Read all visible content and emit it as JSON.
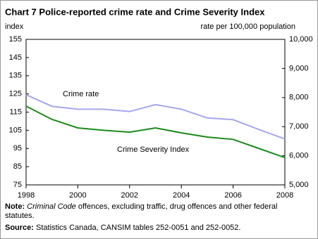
{
  "chart_data": {
    "type": "line",
    "title": "Chart  7 Police-reported crime rate and Crime Severity Index",
    "ylabel": "index",
    "y2label": "rate per 100,000 population",
    "x": [
      1998,
      1999,
      2000,
      2001,
      2002,
      2003,
      2004,
      2005,
      2006,
      2007,
      2008
    ],
    "xlim": [
      1998,
      2008
    ],
    "xticks": [
      1998,
      2000,
      2002,
      2004,
      2006,
      2008
    ],
    "ylim": [
      75,
      155
    ],
    "yticks": [
      75,
      85,
      95,
      105,
      115,
      125,
      135,
      145,
      155
    ],
    "y2lim": [
      5000,
      10000
    ],
    "y2ticks": [
      {
        "value": 5000,
        "label": "5,000"
      },
      {
        "value": 6000,
        "label": "6,000"
      },
      {
        "value": 7000,
        "label": "7,000"
      },
      {
        "value": 8000,
        "label": "8,000"
      },
      {
        "value": 9000,
        "label": "9,000"
      },
      {
        "value": 10000,
        "label": "10,000"
      }
    ],
    "series": [
      {
        "name": "Crime rate",
        "color": "#a6a6ee",
        "axis": "y2",
        "values": [
          8100,
          7700,
          7600,
          7600,
          7520,
          7760,
          7600,
          7300,
          7240,
          6900,
          6580
        ]
      },
      {
        "name": "Crime Severity Index",
        "color": "#1a8a1a",
        "values": [
          118.3,
          111,
          106.3,
          105,
          104,
          106.3,
          103.6,
          101.3,
          100,
          95,
          90
        ]
      }
    ],
    "note_label": "Note:",
    "note_italic": "Criminal Code",
    "note_text": " offences, excluding traffic, drug offences and other federal statutes.",
    "source_label": "Source:",
    "source_text": " Statistics Canada, CANSIM tables 252-0051 and 252-0052."
  }
}
